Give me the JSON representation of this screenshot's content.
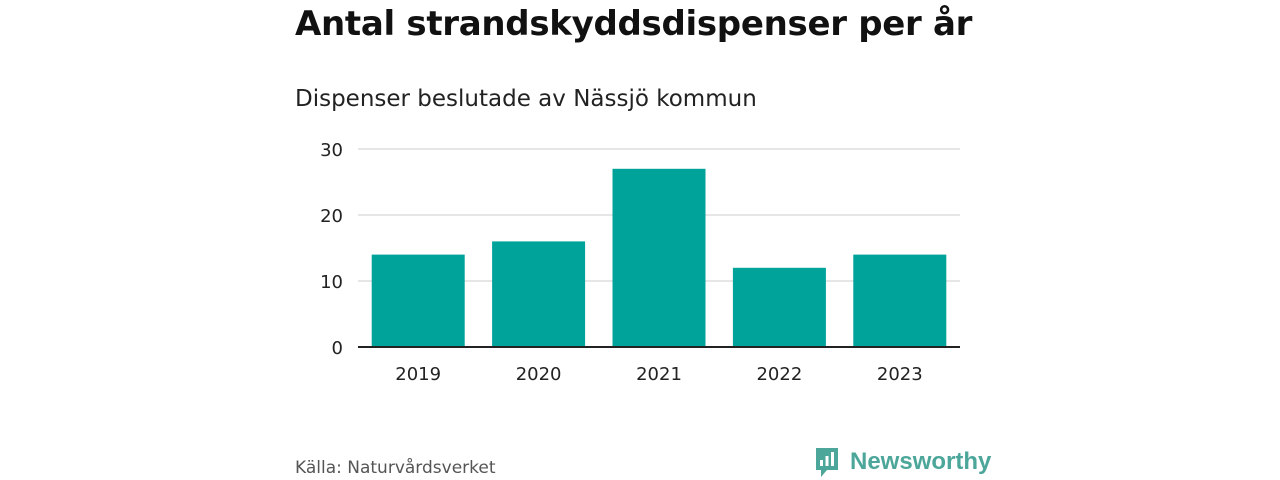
{
  "header": {
    "title": "Antal strandskyddsdispenser per år",
    "subtitle": "Dispenser beslutade av Nässjö kommun"
  },
  "footer": {
    "source": "Källa: Naturvårdsverket",
    "brand": "Newsworthy",
    "brand_icon": "newsworthy-logo-icon"
  },
  "colors": {
    "bar": "#00a39a",
    "grid": "#dddddd",
    "axis": "#222222",
    "brand": "#4ca69a"
  },
  "chart_data": {
    "type": "bar",
    "title": "Antal strandskyddsdispenser per år",
    "subtitle": "Dispenser beslutade av Nässjö kommun",
    "categories": [
      "2019",
      "2020",
      "2021",
      "2022",
      "2023"
    ],
    "values": [
      14,
      16,
      27,
      12,
      14
    ],
    "xlabel": "",
    "ylabel": "",
    "ylim": [
      0,
      30
    ],
    "yticks": [
      "0",
      "10",
      "20",
      "30"
    ],
    "grid": true,
    "legend": "none"
  }
}
